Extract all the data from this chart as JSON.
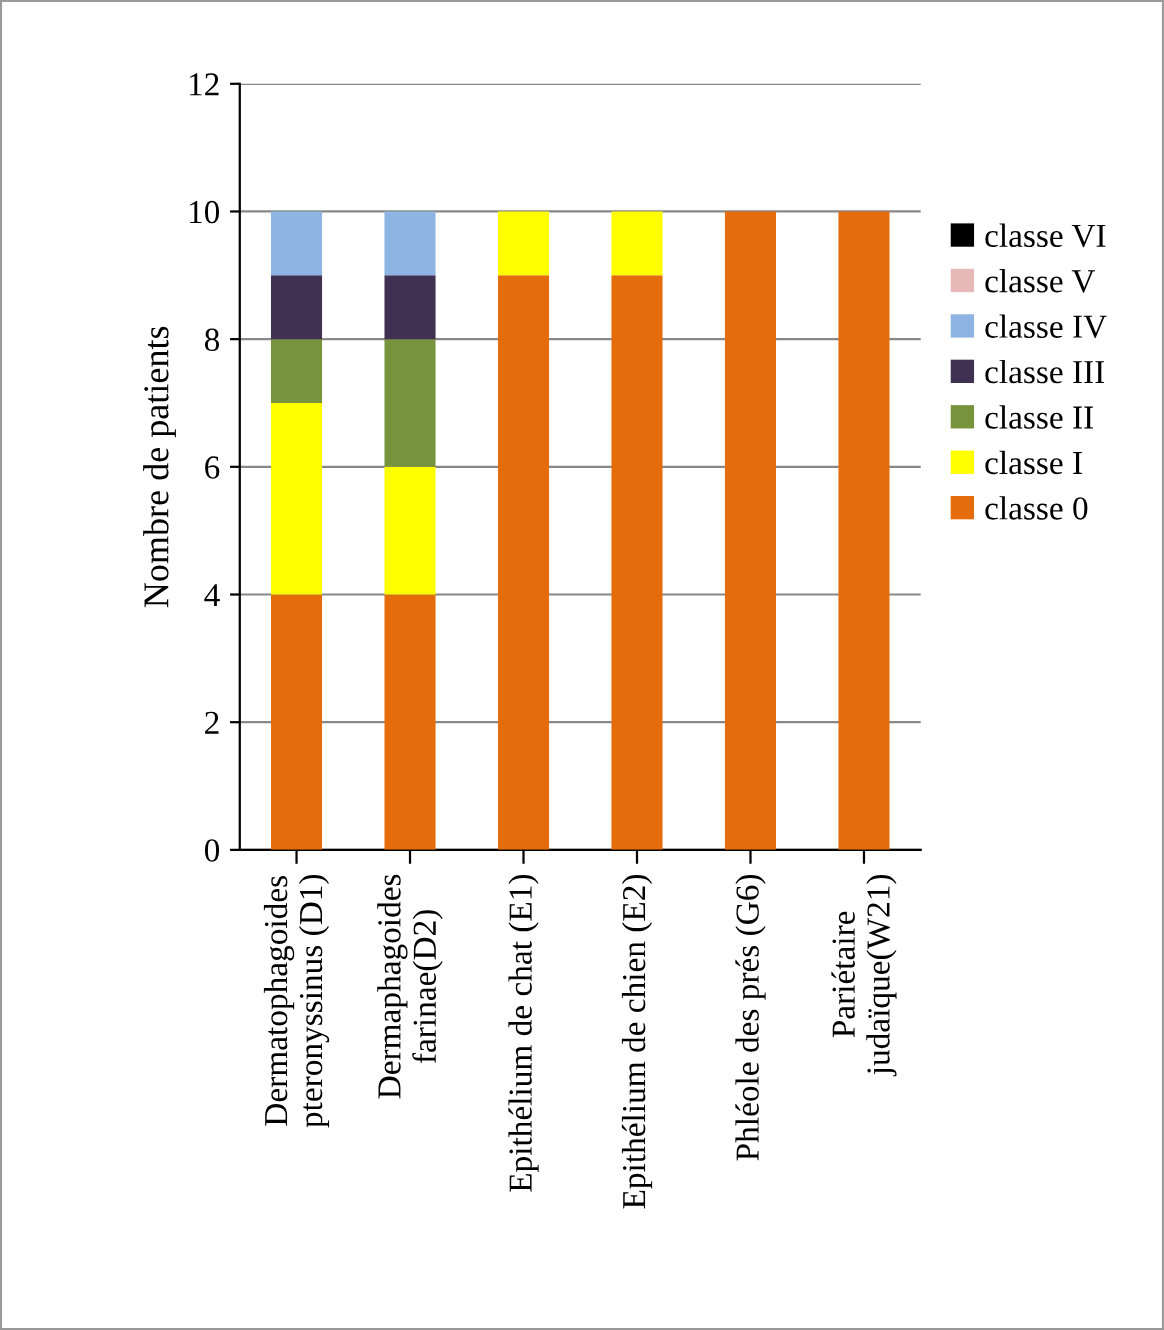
{
  "chart_data": {
    "type": "bar",
    "stacked": true,
    "ylabel": "Nombre de patients",
    "categories": [
      "Dermatophagoides\npteronyssinus (D1)",
      "Dermaphagoides\nfarinae(D2)",
      "Epithélium de chat (E1)",
      "Epithélium de chien (E2)",
      "Phléole des prés (G6)",
      "Pariétaire\njudaïque(W21)"
    ],
    "series": [
      {
        "name": "classe 0",
        "color": "#e46c0a",
        "values": [
          4,
          4,
          9,
          9,
          10,
          10
        ]
      },
      {
        "name": "classe I",
        "color": "#ffff00",
        "values": [
          3,
          2,
          1,
          1,
          0,
          0
        ]
      },
      {
        "name": "classe II",
        "color": "#77933c",
        "values": [
          1,
          2,
          0,
          0,
          0,
          0
        ]
      },
      {
        "name": "classe III",
        "color": "#403152",
        "values": [
          1,
          1,
          0,
          0,
          0,
          0
        ]
      },
      {
        "name": "classe IV",
        "color": "#8eb4e3",
        "values": [
          1,
          1,
          0,
          0,
          0,
          0
        ]
      },
      {
        "name": "classe V",
        "color": "#e6b9b8",
        "values": [
          0,
          0,
          0,
          0,
          0,
          0
        ]
      },
      {
        "name": "classe VI",
        "color": "#000000",
        "values": [
          0,
          0,
          0,
          0,
          0,
          0
        ]
      }
    ],
    "ylim": [
      0,
      12
    ],
    "yticks": [
      0,
      2,
      4,
      6,
      8,
      10,
      12
    ],
    "grid": "y",
    "legend": "right"
  }
}
